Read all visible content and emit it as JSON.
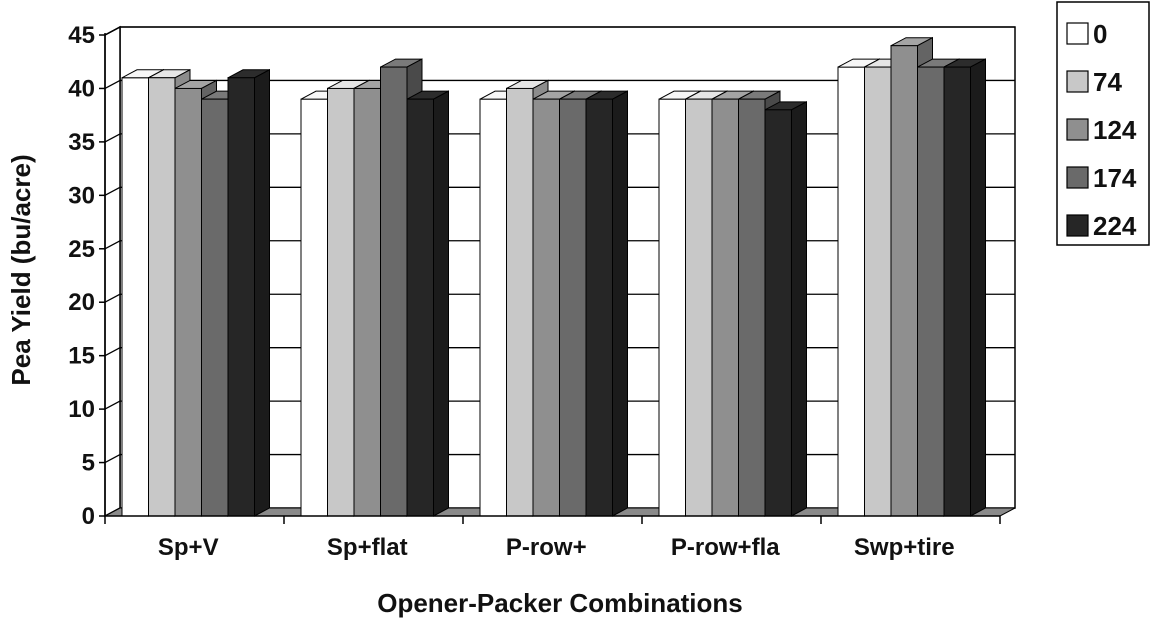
{
  "chart_data": {
    "type": "bar",
    "style": "3d-clustered",
    "xlabel": "Opener-Packer Combinations",
    "ylabel": "Pea Yield (bu/acre)",
    "ylim": [
      0,
      45
    ],
    "yticks": [
      0,
      5,
      10,
      15,
      20,
      25,
      30,
      35,
      40,
      45
    ],
    "grid": true,
    "legend_position": "right",
    "categories": [
      "Sp+V",
      "Sp+flat",
      "P-row+",
      "P-row+fla",
      "Swp+tire"
    ],
    "series": [
      {
        "name": "0",
        "color": "#ffffff",
        "values": [
          41,
          39,
          39,
          39,
          42
        ]
      },
      {
        "name": "74",
        "color": "#c8c8c8",
        "values": [
          41,
          40,
          40,
          39,
          42
        ]
      },
      {
        "name": "124",
        "color": "#8f8f8f",
        "values": [
          40,
          40,
          39,
          39,
          44
        ]
      },
      {
        "name": "174",
        "color": "#6a6a6a",
        "values": [
          39,
          42,
          39,
          39,
          42
        ]
      },
      {
        "name": "224",
        "color": "#262626",
        "values": [
          41,
          39,
          39,
          38,
          42
        ]
      }
    ]
  }
}
